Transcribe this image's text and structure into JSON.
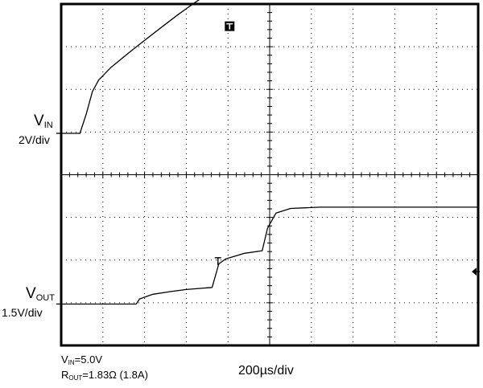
{
  "chart_data": {
    "type": "line",
    "title": "",
    "grid": true,
    "grid_divisions": {
      "x": 10,
      "y": 8
    },
    "time_scale": "200µs/div",
    "channels": [
      {
        "name": "V",
        "name_sub": "IN",
        "scale": "2V/div",
        "ground_level_div": 4.97,
        "trigger_marker_div": [
          4.04,
          7.48
        ],
        "points": [
          [
            0,
            0
          ],
          [
            0.45,
            0
          ],
          [
            0.6,
            0.45
          ],
          [
            0.75,
            0.98
          ],
          [
            0.9,
            1.25
          ],
          [
            1.2,
            1.55
          ],
          [
            1.6,
            1.87
          ],
          [
            2.0,
            2.18
          ],
          [
            2.4,
            2.48
          ],
          [
            2.8,
            2.78
          ],
          [
            3.2,
            3.06
          ],
          [
            3.6,
            3.32
          ],
          [
            3.9,
            3.52
          ],
          [
            4.2,
            3.74
          ],
          [
            4.6,
            3.89
          ],
          [
            5.0,
            3.94
          ],
          [
            6.0,
            3.96
          ],
          [
            7.0,
            3.96
          ],
          [
            8.0,
            3.96
          ],
          [
            9.0,
            3.96
          ],
          [
            10.0,
            3.96
          ]
        ]
      },
      {
        "name": "V",
        "name_sub": "OUT",
        "scale": "1.5V/div",
        "ground_level_div": 0.97,
        "trigger_marker_div": [
          3.76,
          1.98
        ],
        "points": [
          [
            0,
            0
          ],
          [
            1.8,
            0
          ],
          [
            1.88,
            0.12
          ],
          [
            2.2,
            0.23
          ],
          [
            2.6,
            0.29
          ],
          [
            3.0,
            0.34
          ],
          [
            3.5,
            0.38
          ],
          [
            3.62,
            0.39
          ],
          [
            3.78,
            0.94
          ],
          [
            3.95,
            1.06
          ],
          [
            4.4,
            1.19
          ],
          [
            4.82,
            1.25
          ],
          [
            4.95,
            1.78
          ],
          [
            5.15,
            2.13
          ],
          [
            5.5,
            2.24
          ],
          [
            6.2,
            2.27
          ],
          [
            7.0,
            2.27
          ],
          [
            8.0,
            2.27
          ],
          [
            9.0,
            2.27
          ],
          [
            10.0,
            2.27
          ]
        ]
      }
    ],
    "conditions": [
      {
        "label": "V",
        "sub": "IN",
        "value": "=5.0V"
      },
      {
        "label": "R",
        "sub": "OUT",
        "value": "=1.83Ω (1.8A)"
      }
    ]
  }
}
